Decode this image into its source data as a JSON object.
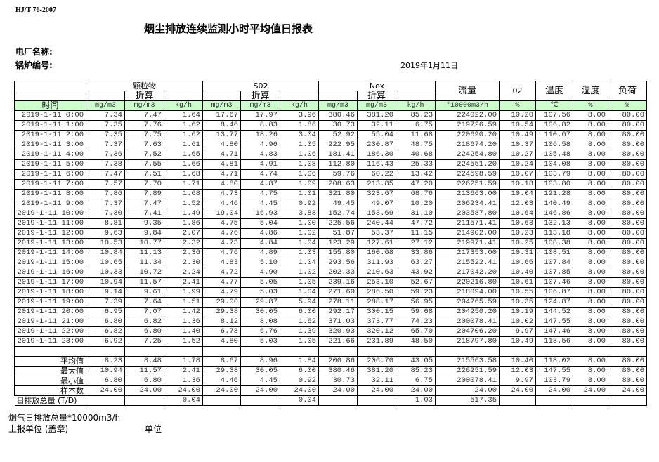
{
  "header": {
    "standard": "HJ/T  76-2007",
    "title": "烟尘排放连续监测小时平均值日报表",
    "plant_label": "电厂名称:",
    "boiler_label": "锅炉编号:",
    "date": "2019年1月11日"
  },
  "columns": {
    "groups": [
      "颗粒物",
      "S02",
      "Nox"
    ],
    "converted": "折算",
    "flow": "流量",
    "o2": "02",
    "temp": "温度",
    "humidity": "湿度",
    "load": "负荷",
    "time": "时间",
    "units": [
      "mg/m3",
      "mg/m3",
      "kg/h",
      "mg/m3",
      "mg/m3",
      "kg/h",
      "mg/m3",
      "mg/m3",
      "kg/h",
      "*10000m3/h",
      "%",
      "℃",
      "%",
      "%"
    ]
  },
  "rows": [
    [
      "2019-1-11 0:00",
      "7.34",
      "7.47",
      "1.64",
      "17.67",
      "17.97",
      "3.96",
      "380.46",
      "381.20",
      "85.23",
      "224022.00",
      "10.20",
      "107.56",
      "8.00",
      "80.00"
    ],
    [
      "2019-1-11 1:00",
      "7.35",
      "7.76",
      "1.62",
      "8.46",
      "8.83",
      "1.86",
      "30.73",
      "32.11",
      "6.75",
      "219726.59",
      "10.54",
      "106.82",
      "8.00",
      "80.00"
    ],
    [
      "2019-1-11 2:00",
      "7.35",
      "7.75",
      "1.62",
      "13.77",
      "18.26",
      "3.04",
      "52.92",
      "55.04",
      "11.68",
      "220690.20",
      "10.49",
      "110.67",
      "8.00",
      "80.00"
    ],
    [
      "2019-1-11 3:00",
      "7.37",
      "7.63",
      "1.61",
      "4.80",
      "4.96",
      "1.05",
      "222.95",
      "230.87",
      "48.75",
      "218674.20",
      "10.37",
      "106.58",
      "8.00",
      "80.00"
    ],
    [
      "2019-1-11 4:00",
      "7.36",
      "7.52",
      "1.65",
      "4.71",
      "4.83",
      "1.06",
      "181.41",
      "186.30",
      "40.68",
      "224254.80",
      "10.27",
      "105.48",
      "8.00",
      "80.00"
    ],
    [
      "2019-1-11 5:00",
      "7.38",
      "7.55",
      "1.66",
      "4.81",
      "4.91",
      "1.08",
      "112.80",
      "116.43",
      "25.33",
      "224551.20",
      "10.24",
      "104.08",
      "8.00",
      "80.00"
    ],
    [
      "2019-1-11 6:00",
      "7.47",
      "7.51",
      "1.68",
      "4.71",
      "4.74",
      "1.06",
      "59.76",
      "60.22",
      "13.42",
      "224598.59",
      "10.07",
      "103.79",
      "8.00",
      "80.00"
    ],
    [
      "2019-1-11 7:00",
      "7.57",
      "7.70",
      "1.71",
      "4.80",
      "4.87",
      "1.09",
      "208.63",
      "213.85",
      "47.20",
      "226251.59",
      "10.18",
      "103.80",
      "8.00",
      "80.00"
    ],
    [
      "2019-1-11 8:00",
      "7.86",
      "7.89",
      "1.68",
      "4.73",
      "4.75",
      "1.01",
      "321.80",
      "323.67",
      "68.76",
      "213663.00",
      "10.04",
      "121.28",
      "8.00",
      "80.00"
    ],
    [
      "2019-1-11 9:00",
      "7.37",
      "7.47",
      "1.52",
      "4.46",
      "4.45",
      "0.92",
      "49.45",
      "49.07",
      "10.20",
      "206234.41",
      "12.03",
      "140.49",
      "8.00",
      "80.00"
    ],
    [
      "2019-1-11 10:00",
      "7.30",
      "7.41",
      "1.49",
      "19.04",
      "16.93",
      "3.88",
      "152.74",
      "153.69",
      "31.10",
      "203587.80",
      "10.64",
      "146.86",
      "8.00",
      "80.00"
    ],
    [
      "2019-1-11 11:00",
      "8.81",
      "9.35",
      "1.86",
      "4.75",
      "5.04",
      "1.00",
      "225.56",
      "240.44",
      "47.72",
      "211571.41",
      "10.63",
      "132.13",
      "8.00",
      "80.00"
    ],
    [
      "2019-1-11 12:00",
      "9.63",
      "9.84",
      "2.07",
      "4.76",
      "4.86",
      "1.02",
      "51.87",
      "53.37",
      "11.15",
      "214902.00",
      "10.23",
      "113.18",
      "8.00",
      "80.00"
    ],
    [
      "2019-1-11 13:00",
      "10.53",
      "10.77",
      "2.32",
      "4.73",
      "4.84",
      "1.04",
      "123.29",
      "127.61",
      "27.12",
      "219971.41",
      "10.25",
      "108.38",
      "8.00",
      "80.00"
    ],
    [
      "2019-1-11 14:00",
      "10.84",
      "11.13",
      "2.36",
      "4.76",
      "4.89",
      "1.03",
      "155.80",
      "160.68",
      "33.86",
      "217353.00",
      "10.31",
      "108.51",
      "8.00",
      "80.00"
    ],
    [
      "2019-1-11 15:00",
      "10.65",
      "11.34",
      "2.30",
      "4.83",
      "5.10",
      "1.04",
      "293.56",
      "311.93",
      "63.27",
      "215522.41",
      "10.66",
      "107.84",
      "8.00",
      "80.00"
    ],
    [
      "2019-1-11 16:00",
      "10.33",
      "10.72",
      "2.24",
      "4.72",
      "4.90",
      "1.02",
      "202.33",
      "210.63",
      "43.92",
      "217042.20",
      "10.40",
      "107.85",
      "8.00",
      "80.00"
    ],
    [
      "2019-1-11 17:00",
      "10.94",
      "11.57",
      "2.41",
      "4.77",
      "5.05",
      "1.05",
      "239.16",
      "253.10",
      "52.67",
      "220216.80",
      "10.61",
      "107.46",
      "8.00",
      "80.00"
    ],
    [
      "2019-1-11 18:00",
      "9.14",
      "9.61",
      "1.99",
      "4.79",
      "5.03",
      "1.04",
      "271.60",
      "286.50",
      "59.23",
      "218094.00",
      "10.55",
      "106.87",
      "8.00",
      "80.00"
    ],
    [
      "2019-1-11 19:00",
      "7.39",
      "7.64",
      "1.51",
      "29.00",
      "29.87",
      "5.94",
      "278.11",
      "288.17",
      "56.95",
      "204765.59",
      "10.35",
      "124.87",
      "8.00",
      "80.00"
    ],
    [
      "2019-1-11 20:00",
      "6.95",
      "7.07",
      "1.42",
      "29.38",
      "30.05",
      "6.00",
      "292.17",
      "300.15",
      "59.68",
      "204250.20",
      "10.19",
      "144.52",
      "8.00",
      "80.00"
    ],
    [
      "2019-1-11 21:00",
      "6.80",
      "6.82",
      "1.36",
      "8.12",
      "8.08",
      "1.62",
      "371.03",
      "373.77",
      "74.23",
      "200078.41",
      "10.02",
      "147.55",
      "8.00",
      "80.00"
    ],
    [
      "2019-1-11 22:00",
      "6.82",
      "6.80",
      "1.40",
      "6.78",
      "6.76",
      "1.39",
      "320.93",
      "320.12",
      "65.70",
      "204706.20",
      "9.97",
      "147.46",
      "8.00",
      "80.00"
    ],
    [
      "2019-1-11 23:00",
      "6.92",
      "7.25",
      "1.52",
      "4.80",
      "5.03",
      "1.05",
      "221.66",
      "231.89",
      "48.50",
      "218797.80",
      "10.49",
      "118.56",
      "8.00",
      "80.00"
    ]
  ],
  "stats": [
    [
      "平均值",
      "8.23",
      "8.48",
      "1.78",
      "8.67",
      "8.96",
      "1.84",
      "200.86",
      "206.70",
      "43.05",
      "215563.58",
      "10.40",
      "118.02",
      "8.00",
      "80.00"
    ],
    [
      "最大值",
      "10.94",
      "11.57",
      "2.41",
      "29.38",
      "30.05",
      "6.00",
      "380.46",
      "381.20",
      "85.23",
      "226251.59",
      "12.03",
      "147.55",
      "8.00",
      "80.00"
    ],
    [
      "最小值",
      "6.80",
      "6.80",
      "1.36",
      "4.46",
      "4.45",
      "0.92",
      "30.73",
      "32.11",
      "6.75",
      "200078.41",
      "9.97",
      "103.79",
      "8.00",
      "80.00"
    ],
    [
      "样本数",
      "24.00",
      "24.00",
      "24.00",
      "24.00",
      "24.00",
      "24.00",
      "24.00",
      "24.00",
      "24.00",
      "24.00",
      "24.00",
      "24.00",
      "24.00",
      "24.00"
    ]
  ],
  "daily_total": [
    "日排放总量 (T/D)",
    "",
    "",
    "0.04",
    "",
    "",
    "0.04",
    "",
    "",
    "1.03",
    "517.35",
    "",
    "",
    "",
    ""
  ],
  "footer": {
    "flue_gas_total": "烟气日排放总量*10000m3/h",
    "reporter": "上报单位 (盖章)",
    "unit": "单位"
  },
  "colors": {
    "header_green": "#ccffcc"
  }
}
